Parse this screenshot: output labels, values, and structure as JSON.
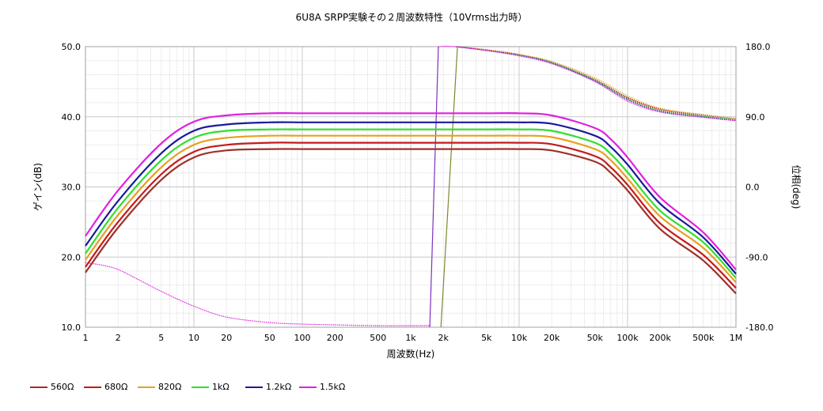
{
  "chart_data": {
    "type": "line",
    "title": "6U8A SRPP実験その２周波数特性（10Vrms出力時）",
    "xlabel": "周波数(Hz)",
    "ylabel_left": "ゲイン(dB)",
    "ylabel_right": "位相(deg)",
    "x_scale": "log",
    "xlim": [
      1,
      1000000
    ],
    "ylim_left": [
      10,
      50
    ],
    "ylim_right": [
      -180,
      180
    ],
    "x_ticks": [
      {
        "v": 1,
        "label": "1"
      },
      {
        "v": 2,
        "label": "2"
      },
      {
        "v": 5,
        "label": "5"
      },
      {
        "v": 10,
        "label": "10"
      },
      {
        "v": 20,
        "label": "20"
      },
      {
        "v": 50,
        "label": "50"
      },
      {
        "v": 100,
        "label": "100"
      },
      {
        "v": 200,
        "label": "200"
      },
      {
        "v": 500,
        "label": "500"
      },
      {
        "v": 1000,
        "label": "1k"
      },
      {
        "v": 2000,
        "label": "2k"
      },
      {
        "v": 5000,
        "label": "5k"
      },
      {
        "v": 10000,
        "label": "10k"
      },
      {
        "v": 20000,
        "label": "20k"
      },
      {
        "v": 50000,
        "label": "50k"
      },
      {
        "v": 100000,
        "label": "100k"
      },
      {
        "v": 200000,
        "label": "200k"
      },
      {
        "v": 500000,
        "label": "500k"
      },
      {
        "v": 1000000,
        "label": "1M"
      }
    ],
    "y_ticks_left": [
      {
        "v": 10,
        "label": "10.0"
      },
      {
        "v": 20,
        "label": "20.0"
      },
      {
        "v": 30,
        "label": "30.0"
      },
      {
        "v": 40,
        "label": "40.0"
      },
      {
        "v": 50,
        "label": "50.0"
      }
    ],
    "y_ticks_right": [
      {
        "v": -180,
        "label": "-180.0"
      },
      {
        "v": -90,
        "label": "-90.0"
      },
      {
        "v": 0,
        "label": "0.0"
      },
      {
        "v": 90,
        "label": "90.0"
      },
      {
        "v": 180,
        "label": "180.0"
      }
    ],
    "grid": true,
    "legend_position": "bottom",
    "series": [
      {
        "name": "560Ω",
        "color": "#a0302a",
        "gain_x": [
          1,
          2,
          5,
          10,
          20,
          50,
          100,
          200,
          500,
          1000,
          2000,
          5000,
          10000,
          20000,
          50000,
          70000,
          100000,
          200000,
          500000,
          1000000
        ],
        "gain_y": [
          17.8,
          24.2,
          31.0,
          34.2,
          35.2,
          35.4,
          35.4,
          35.4,
          35.4,
          35.4,
          35.4,
          35.4,
          35.4,
          35.2,
          33.6,
          32.0,
          29.5,
          24.0,
          19.5,
          14.8
        ],
        "phase_x": [
          2700,
          5000,
          10000,
          20000,
          50000,
          100000,
          200000,
          500000,
          1000000
        ],
        "phase_y": [
          180,
          176,
          170,
          160,
          138,
          115,
          100,
          92,
          87
        ]
      },
      {
        "name": "680Ω",
        "color": "#c41a1a",
        "gain_x": [
          1,
          2,
          5,
          10,
          20,
          50,
          100,
          200,
          500,
          1000,
          2000,
          5000,
          10000,
          20000,
          50000,
          70000,
          100000,
          200000,
          500000,
          1000000
        ],
        "gain_y": [
          18.6,
          25.0,
          31.8,
          35.0,
          36.0,
          36.3,
          36.3,
          36.3,
          36.3,
          36.3,
          36.3,
          36.3,
          36.3,
          36.1,
          34.4,
          32.8,
          30.3,
          24.8,
          20.3,
          15.6
        ],
        "phase_x": [
          2700,
          5000,
          10000,
          20000,
          50000,
          100000,
          200000,
          500000,
          1000000
        ],
        "phase_y": [
          180,
          176,
          170,
          160,
          137,
          114,
          99,
          91,
          86
        ]
      },
      {
        "name": "820Ω",
        "color": "#e8a020",
        "gain_x": [
          1,
          2,
          5,
          10,
          20,
          50,
          100,
          200,
          500,
          1000,
          2000,
          5000,
          10000,
          20000,
          50000,
          70000,
          100000,
          200000,
          500000,
          1000000
        ],
        "gain_y": [
          19.6,
          26.0,
          32.8,
          36.0,
          37.0,
          37.3,
          37.3,
          37.3,
          37.3,
          37.3,
          37.3,
          37.3,
          37.3,
          37.1,
          35.4,
          33.8,
          31.2,
          25.8,
          21.3,
          16.4
        ],
        "phase_x": [
          2600,
          5000,
          10000,
          20000,
          50000,
          100000,
          200000,
          500000,
          1000000
        ],
        "phase_y": [
          180,
          176,
          170,
          161,
          140,
          117,
          101,
          93,
          88
        ]
      },
      {
        "name": "1kΩ",
        "color": "#2ee02e",
        "gain_x": [
          1,
          2,
          5,
          10,
          20,
          50,
          100,
          200,
          500,
          1000,
          2000,
          5000,
          10000,
          20000,
          50000,
          70000,
          100000,
          200000,
          500000,
          1000000
        ],
        "gain_y": [
          20.5,
          27.0,
          33.8,
          37.0,
          38.0,
          38.2,
          38.2,
          38.2,
          38.2,
          38.2,
          38.2,
          38.2,
          38.2,
          38.0,
          36.3,
          34.7,
          32.1,
          26.6,
          22.1,
          17.0
        ],
        "phase_x": [
          2600,
          5000,
          10000,
          20000,
          50000,
          100000,
          200000,
          500000,
          1000000
        ],
        "phase_y": [
          180,
          175,
          169,
          160,
          137,
          113,
          98,
          91,
          86
        ]
      },
      {
        "name": "1.2kΩ",
        "color": "#1a1a9a",
        "gain_x": [
          1,
          2,
          5,
          10,
          20,
          50,
          100,
          200,
          500,
          1000,
          2000,
          5000,
          10000,
          20000,
          50000,
          70000,
          100000,
          200000,
          500000,
          1000000
        ],
        "gain_y": [
          21.6,
          28.0,
          34.8,
          38.0,
          38.9,
          39.2,
          39.2,
          39.2,
          39.2,
          39.2,
          39.2,
          39.2,
          39.2,
          39.0,
          37.3,
          35.7,
          33.2,
          27.6,
          22.8,
          17.6
        ],
        "phase_x": [
          2600,
          5000,
          10000,
          20000,
          50000,
          100000,
          200000,
          500000,
          1000000
        ],
        "phase_y": [
          180,
          175,
          169,
          159,
          136,
          112,
          97,
          90,
          85
        ]
      },
      {
        "name": "1.5kΩ",
        "color": "#e020e0",
        "gain_x": [
          1,
          2,
          5,
          10,
          20,
          50,
          100,
          200,
          500,
          1000,
          2000,
          5000,
          10000,
          20000,
          50000,
          70000,
          100000,
          200000,
          500000,
          1000000
        ],
        "gain_y": [
          23.0,
          29.5,
          36.2,
          39.3,
          40.2,
          40.5,
          40.5,
          40.5,
          40.5,
          40.5,
          40.5,
          40.5,
          40.5,
          40.2,
          38.4,
          36.8,
          34.2,
          28.5,
          23.5,
          18.2
        ],
        "phase_x": [
          1,
          1.5,
          2,
          3,
          5,
          10,
          20,
          50,
          100,
          200,
          500,
          1000,
          1500,
          1800,
          2500,
          5000,
          10000,
          20000,
          50000,
          100000,
          200000,
          500000,
          1000000
        ],
        "phase_y": [
          -97,
          -101,
          -106,
          -118,
          -134,
          -153,
          -167,
          -174,
          -176,
          -177,
          -178,
          -178,
          -178,
          180,
          180,
          175,
          168,
          158,
          135,
          110,
          96,
          89,
          85
        ]
      }
    ],
    "phase_jumps": [
      {
        "series": "1.5kΩ",
        "x": [
          1500,
          1800
        ],
        "color": "#8030c0"
      },
      {
        "series": "560Ω",
        "x": [
          1900,
          2700
        ],
        "color": "#7a8a30"
      }
    ]
  }
}
